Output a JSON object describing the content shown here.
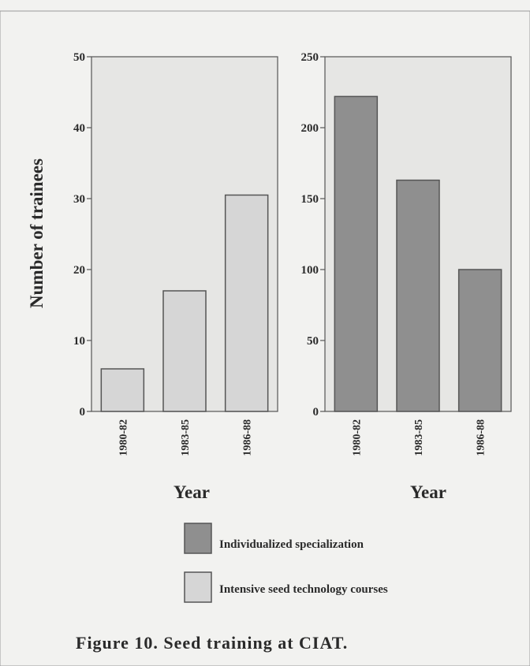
{
  "chart_data": [
    {
      "type": "bar",
      "categories": [
        "1980-82",
        "1983-85",
        "1986-88"
      ],
      "values": [
        6,
        17,
        30.5
      ],
      "xlabel": "Year",
      "ylabel": "Number of trainees",
      "ylim": [
        0,
        50
      ],
      "yticks": [
        "0",
        "10",
        "20",
        "30",
        "40",
        "50"
      ],
      "series_name": "Intensive seed technology courses",
      "bar_color": "#d6d6d6",
      "grid": false
    },
    {
      "type": "bar",
      "categories": [
        "1980-82",
        "1983-85",
        "1986-88"
      ],
      "values": [
        222,
        163,
        100
      ],
      "xlabel": "Year",
      "ylabel": "",
      "ylim": [
        0,
        250
      ],
      "yticks": [
        "0",
        "50",
        "100",
        "150",
        "200",
        "250"
      ],
      "series_name": "Individualized specialization",
      "bar_color": "#8f8f8f",
      "grid": false
    }
  ],
  "legend": [
    {
      "label": "Individualized specialization",
      "color": "#8f8f8f"
    },
    {
      "label": "Intensive seed technology courses",
      "color": "#d6d6d6"
    }
  ],
  "caption": "Figure 10. Seed training at CIAT.",
  "colors": {
    "plot_background": "#e6e6e4",
    "border": "#555555",
    "page": "#f2f2f0"
  }
}
